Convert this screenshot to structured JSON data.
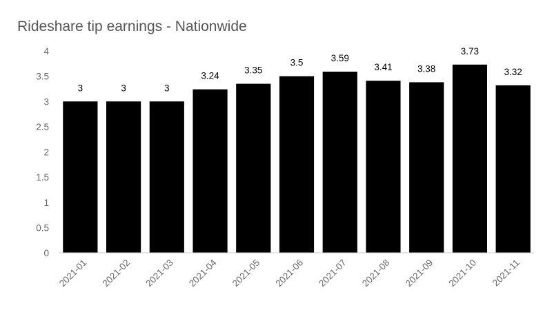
{
  "chart_data": {
    "type": "bar",
    "title": "Rideshare tip earnings - Nationwide",
    "xlabel": "",
    "ylabel": "",
    "categories": [
      "2021-01",
      "2021-02",
      "2021-03",
      "2021-04",
      "2021-05",
      "2021-06",
      "2021-07",
      "2021-08",
      "2021-09",
      "2021-10",
      "2021-11"
    ],
    "values": [
      3,
      3,
      3,
      3.24,
      3.35,
      3.5,
      3.59,
      3.41,
      3.38,
      3.73,
      3.32
    ],
    "data_labels": [
      "3",
      "3",
      "3",
      "3.24",
      "3.35",
      "3.5",
      "3.59",
      "3.41",
      "3.38",
      "3.73",
      "3.32"
    ],
    "ylim": [
      0,
      4
    ],
    "y_ticks": [
      "0",
      "0.5",
      "1",
      "1.5",
      "2",
      "2.5",
      "3",
      "3.5",
      "4"
    ],
    "grid": false,
    "legend": "none",
    "bar_color": "#000000",
    "axis_color": "#cccccc"
  }
}
